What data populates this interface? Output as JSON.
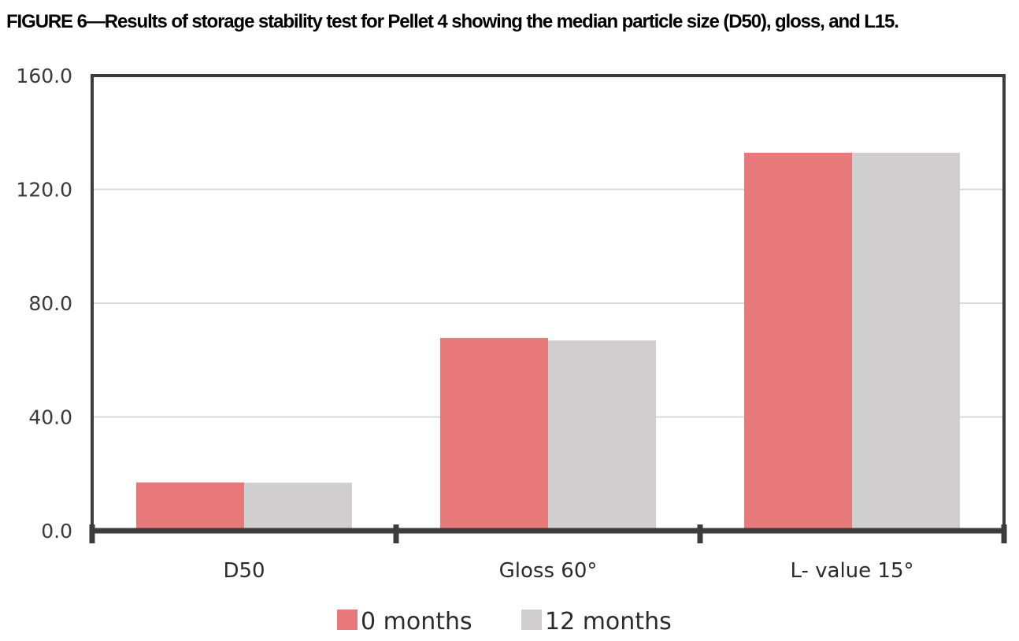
{
  "caption": "FIGURE 6—Results of storage stability test for Pellet 4 showing the median particle size (D50), gloss, and L15.",
  "colors": {
    "series_0": "#e8797a",
    "series_1": "#d0cecf",
    "axis": "#3c3c3c",
    "grid": "#d9d9d9"
  },
  "chart_data": {
    "type": "bar",
    "title": "",
    "xlabel": "",
    "ylabel": "",
    "categories": [
      "D50",
      "Gloss 60°",
      "L- value 15°"
    ],
    "series": [
      {
        "name": "0 months",
        "values": [
          17.0,
          67.8,
          132.9
        ]
      },
      {
        "name": "12 months",
        "values": [
          16.9,
          66.9,
          132.9
        ]
      }
    ],
    "ylim": [
      0,
      160
    ],
    "yticks": [
      0,
      40,
      80,
      120,
      160
    ],
    "ytick_labels": [
      "0.0",
      "40.0",
      "80.0",
      "120.0",
      "160.0"
    ],
    "grid": true,
    "legend": "bottom"
  }
}
